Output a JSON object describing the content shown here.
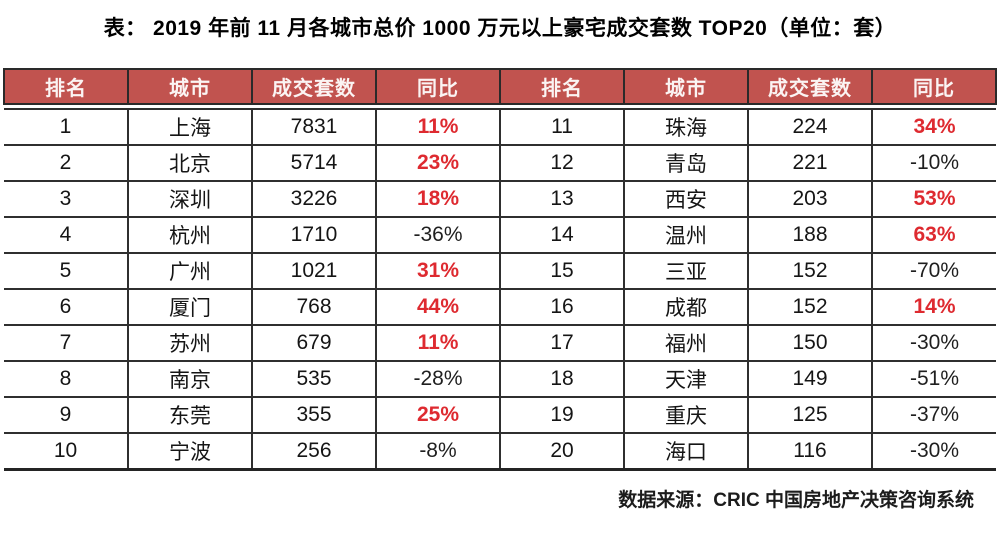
{
  "chart_data": {
    "type": "table",
    "title": "表：  2019 年前 11 月各城市总价 1000 万元以上豪宅成交套数 TOP20（单位：套）",
    "layout": "two-column-split-10-rows",
    "columns": [
      "排名",
      "城市",
      "成交套数",
      "同比"
    ],
    "rows": [
      {
        "rank": "1",
        "city": "上海",
        "count": "7831",
        "yoy": "11%",
        "trend": "up"
      },
      {
        "rank": "2",
        "city": "北京",
        "count": "5714",
        "yoy": "23%",
        "trend": "up"
      },
      {
        "rank": "3",
        "city": "深圳",
        "count": "3226",
        "yoy": "18%",
        "trend": "up"
      },
      {
        "rank": "4",
        "city": "杭州",
        "count": "1710",
        "yoy": "-36%",
        "trend": "down"
      },
      {
        "rank": "5",
        "city": "广州",
        "count": "1021",
        "yoy": "31%",
        "trend": "up"
      },
      {
        "rank": "6",
        "city": "厦门",
        "count": "768",
        "yoy": "44%",
        "trend": "up"
      },
      {
        "rank": "7",
        "city": "苏州",
        "count": "679",
        "yoy": "11%",
        "trend": "up"
      },
      {
        "rank": "8",
        "city": "南京",
        "count": "535",
        "yoy": "-28%",
        "trend": "down"
      },
      {
        "rank": "9",
        "city": "东莞",
        "count": "355",
        "yoy": "25%",
        "trend": "up"
      },
      {
        "rank": "10",
        "city": "宁波",
        "count": "256",
        "yoy": "-8%",
        "trend": "down"
      },
      {
        "rank": "11",
        "city": "珠海",
        "count": "224",
        "yoy": "34%",
        "trend": "up"
      },
      {
        "rank": "12",
        "city": "青岛",
        "count": "221",
        "yoy": "-10%",
        "trend": "down"
      },
      {
        "rank": "13",
        "city": "西安",
        "count": "203",
        "yoy": "53%",
        "trend": "up"
      },
      {
        "rank": "14",
        "city": "温州",
        "count": "188",
        "yoy": "63%",
        "trend": "up"
      },
      {
        "rank": "15",
        "city": "三亚",
        "count": "152",
        "yoy": "-70%",
        "trend": "down"
      },
      {
        "rank": "16",
        "city": "成都",
        "count": "152",
        "yoy": "14%",
        "trend": "up"
      },
      {
        "rank": "17",
        "city": "福州",
        "count": "150",
        "yoy": "-30%",
        "trend": "down"
      },
      {
        "rank": "18",
        "city": "天津",
        "count": "149",
        "yoy": "-51%",
        "trend": "down"
      },
      {
        "rank": "19",
        "city": "重庆",
        "count": "125",
        "yoy": "-37%",
        "trend": "down"
      },
      {
        "rank": "20",
        "city": "海口",
        "count": "116",
        "yoy": "-30%",
        "trend": "down"
      }
    ],
    "source": "数据来源：CRIC 中国房地产决策咨询系统",
    "colors": {
      "header_background": "#c1534f",
      "header_text": "#fbf4f3",
      "positive_yoy": "#de2a30",
      "negative_yoy": "#1f1f1f",
      "border": "#2f2f2f"
    }
  }
}
